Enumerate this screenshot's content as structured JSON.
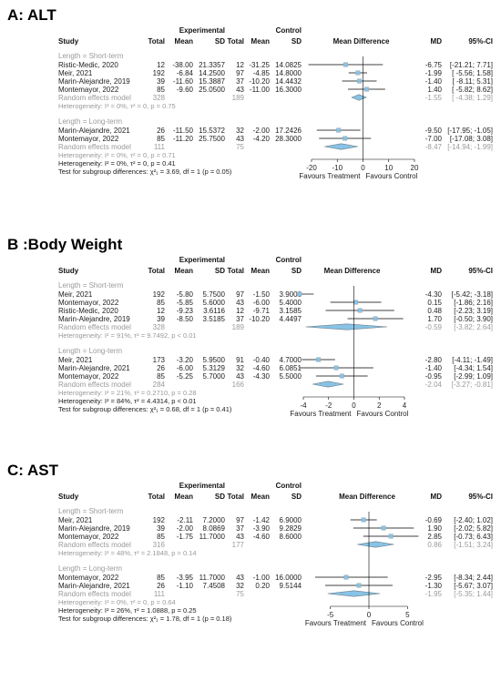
{
  "header": {
    "experimental": "Experimental",
    "control": "Control",
    "study": "Study",
    "total": "Total",
    "mean": "Mean",
    "sd": "SD",
    "mean_difference": "Mean Difference",
    "md": "MD",
    "ci": "95%-CI"
  },
  "colors": {
    "square": "#87c3e6",
    "square_edge": "#9aa7b0",
    "diamond": "#87c3e6",
    "line": "#000000",
    "gray_text": "#9a9a9a"
  },
  "chart_data": [
    {
      "type": "forest",
      "title": "A: ALT",
      "xlim": [
        -20,
        20
      ],
      "ticks": [
        -20,
        -10,
        0,
        10,
        20
      ],
      "favours_left": "Favours Treatment",
      "favours_right": "Favours Control",
      "groups": [
        {
          "label": "Length = Short-term",
          "studies": [
            {
              "study": "Ristic-Medic, 2020",
              "et": "12",
              "em": "-38.00",
              "esd": "21.3357",
              "ct": "12",
              "cm": "-31.25",
              "csd": "14.0825",
              "md": -6.75,
              "lo": -21.21,
              "hi": 7.71,
              "md_text": "-6.75",
              "ci_text": "[-21.21; 7.71]"
            },
            {
              "study": "Meir, 2021",
              "et": "192",
              "em": "-6.84",
              "esd": "14.2500",
              "ct": "97",
              "cm": "-4.85",
              "csd": "14.8000",
              "md": -1.99,
              "lo": -5.56,
              "hi": 1.58,
              "md_text": "-1.99",
              "ci_text": "[ -5.56; 1.58]"
            },
            {
              "study": "Marin-Alejandre, 2019",
              "et": "39",
              "em": "-11.60",
              "esd": "15.3887",
              "ct": "37",
              "cm": "-10.20",
              "csd": "14.4432",
              "md": -1.4,
              "lo": -8.11,
              "hi": 5.31,
              "md_text": "-1.40",
              "ci_text": "[ -8.11; 5.31]"
            },
            {
              "study": "Montemayor, 2022",
              "et": "85",
              "em": "-9.60",
              "esd": "25.0500",
              "ct": "43",
              "cm": "-11.00",
              "csd": "16.3000",
              "md": 1.4,
              "lo": -5.82,
              "hi": 8.62,
              "md_text": "1.40",
              "ci_text": "[ -5.82; 8.62]"
            }
          ],
          "re_label": "Random effects model",
          "re_et": "328",
          "re_ct": "189",
          "re_md": -1.55,
          "re_lo": -4.38,
          "re_hi": 1.29,
          "re_md_text": "-1.55",
          "re_ci_text": "[ -4.38; 1.29]",
          "het": "Heterogeneity: I² = 0%, τ² = 0, p = 0.75"
        },
        {
          "label": "Length = Long-term",
          "studies": [
            {
              "study": "Marin-Alejandre, 2021",
              "et": "26",
              "em": "-11.50",
              "esd": "15.5372",
              "ct": "32",
              "cm": "-2.00",
              "csd": "17.2426",
              "md": -9.5,
              "lo": -17.95,
              "hi": -1.05,
              "md_text": "-9.50",
              "ci_text": "[-17.95; -1.05]"
            },
            {
              "study": "Montemayor, 2022",
              "et": "85",
              "em": "-11.20",
              "esd": "25.7500",
              "ct": "43",
              "cm": "-4.20",
              "csd": "28.3000",
              "md": -7.0,
              "lo": -17.08,
              "hi": 3.08,
              "md_text": "-7.00",
              "ci_text": "[-17.08; 3.08]"
            }
          ],
          "re_label": "Random effects model",
          "re_et": "111",
          "re_ct": "75",
          "re_md": -8.47,
          "re_lo": -14.94,
          "re_hi": -1.99,
          "re_md_text": "-8.47",
          "re_ci_text": "[-14.94; -1.99]",
          "het": "Heterogeneity: I² = 0%, τ² = 0, p = 0.71"
        }
      ],
      "overall_het": "Heterogeneity: I² = 0%, τ² = 0, p = 0.41",
      "subgroup_test": "Test for subgroup differences: χ²₁ = 3.69, df = 1 (p = 0.05)"
    },
    {
      "type": "forest",
      "title": "B :Body Weight",
      "xlim": [
        -4,
        4
      ],
      "ticks": [
        -4,
        -2,
        0,
        2,
        4
      ],
      "favours_left": "Favours Treatment",
      "favours_right": "Favours Control",
      "groups": [
        {
          "label": "Length = Short-term",
          "studies": [
            {
              "study": "Meir, 2021",
              "et": "192",
              "em": "-5.80",
              "esd": "5.7500",
              "ct": "97",
              "cm": "-1.50",
              "csd": "3.9000",
              "md": -4.3,
              "lo": -5.42,
              "hi": -3.18,
              "md_text": "-4.30",
              "ci_text": "[-5.42; -3.18]"
            },
            {
              "study": "Montemayor, 2022",
              "et": "85",
              "em": "-5.85",
              "esd": "5.6000",
              "ct": "43",
              "cm": "-6.00",
              "csd": "5.4000",
              "md": 0.15,
              "lo": -1.86,
              "hi": 2.16,
              "md_text": "0.15",
              "ci_text": "[-1.86; 2.16]"
            },
            {
              "study": "Ristic-Medic, 2020",
              "et": "12",
              "em": "-9.23",
              "esd": "3.6116",
              "ct": "12",
              "cm": "-9.71",
              "csd": "3.1585",
              "md": 0.48,
              "lo": -2.23,
              "hi": 3.19,
              "md_text": "0.48",
              "ci_text": "[-2.23; 3.19]"
            },
            {
              "study": "Marin-Alejandre, 2019",
              "et": "39",
              "em": "-8.50",
              "esd": "3.5185",
              "ct": "37",
              "cm": "-10.20",
              "csd": "4.4497",
              "md": 1.7,
              "lo": -0.5,
              "hi": 3.9,
              "md_text": "1.70",
              "ci_text": "[-0.50; 3.90]"
            }
          ],
          "re_label": "Random effects model",
          "re_et": "328",
          "re_ct": "189",
          "re_md": -0.59,
          "re_lo": -3.82,
          "re_hi": 2.64,
          "re_md_text": "-0.59",
          "re_ci_text": "[-3.82; 2.64]",
          "het": "Heterogeneity: I² = 91%, τ² = 9.7492, p < 0.01"
        },
        {
          "label": "Length = Long-term",
          "studies": [
            {
              "study": "Meir, 2021",
              "et": "173",
              "em": "-3.20",
              "esd": "5.9500",
              "ct": "91",
              "cm": "-0.40",
              "csd": "4.7000",
              "md": -2.8,
              "lo": -4.11,
              "hi": -1.49,
              "md_text": "-2.80",
              "ci_text": "[-4.11; -1.49]"
            },
            {
              "study": "Marin-Alejandre, 2021",
              "et": "26",
              "em": "-6.00",
              "esd": "5.3129",
              "ct": "32",
              "cm": "-4.60",
              "csd": "6.0851",
              "md": -1.4,
              "lo": -4.34,
              "hi": 1.54,
              "md_text": "-1.40",
              "ci_text": "[-4.34; 1.54]"
            },
            {
              "study": "Montemayor, 2022",
              "et": "85",
              "em": "-5.25",
              "esd": "5.7000",
              "ct": "43",
              "cm": "-4.30",
              "csd": "5.5000",
              "md": -0.95,
              "lo": -2.99,
              "hi": 1.09,
              "md_text": "-0.95",
              "ci_text": "[-2.99; 1.09]"
            }
          ],
          "re_label": "Random effects model",
          "re_et": "284",
          "re_ct": "166",
          "re_md": -2.04,
          "re_lo": -3.27,
          "re_hi": -0.81,
          "re_md_text": "-2.04",
          "re_ci_text": "[-3.27; -0.81]",
          "het": "Heterogeneity: I² = 21%, τ² = 0.2710, p = 0.28"
        }
      ],
      "overall_het": "Heterogeneity: I² = 84%, τ² = 4.4314, p < 0.01",
      "subgroup_test": "Test for subgroup differences: χ²₁ = 0.68, df = 1 (p = 0.41)"
    },
    {
      "type": "forest",
      "title": "C: AST",
      "xlim": [
        -5,
        5
      ],
      "ticks": [
        -5,
        0,
        5
      ],
      "favours_left": "Favours Treatment",
      "favours_right": "Favours Control",
      "groups": [
        {
          "label": "Length = Short-term",
          "studies": [
            {
              "study": "Meir, 2021",
              "et": "192",
              "em": "-2.11",
              "esd": "7.2000",
              "ct": "97",
              "cm": "-1.42",
              "csd": "6.9000",
              "md": -0.69,
              "lo": -2.4,
              "hi": 1.02,
              "md_text": "-0.69",
              "ci_text": "[-2.40; 1.02]"
            },
            {
              "study": "Marin-Alejandre, 2019",
              "et": "39",
              "em": "-2.00",
              "esd": "8.0869",
              "ct": "37",
              "cm": "-3.90",
              "csd": "9.2829",
              "md": 1.9,
              "lo": -2.02,
              "hi": 5.82,
              "md_text": "1.90",
              "ci_text": "[-2.02; 5.82]"
            },
            {
              "study": "Montemayor, 2022",
              "et": "85",
              "em": "-1.75",
              "esd": "11.7000",
              "ct": "43",
              "cm": "-4.60",
              "csd": "8.6000",
              "md": 2.85,
              "lo": -0.73,
              "hi": 6.43,
              "md_text": "2.85",
              "ci_text": "[-0.73; 6.43]"
            }
          ],
          "re_label": "Random effects model",
          "re_et": "316",
          "re_ct": "177",
          "re_md": 0.86,
          "re_lo": -1.51,
          "re_hi": 3.24,
          "re_md_text": "0.86",
          "re_ci_text": "[-1.51; 3.24]",
          "het": "Heterogeneity: I² = 48%, τ² = 2.1848, p = 0.14"
        },
        {
          "label": "Length = Long-term",
          "studies": [
            {
              "study": "Montemayor, 2022",
              "et": "85",
              "em": "-3.95",
              "esd": "11.7000",
              "ct": "43",
              "cm": "-1.00",
              "csd": "16.0000",
              "md": -2.95,
              "lo": -8.34,
              "hi": 2.44,
              "md_text": "-2.95",
              "ci_text": "[-8.34; 2.44]"
            },
            {
              "study": "Marin-Alejandre, 2021",
              "et": "26",
              "em": "-1.10",
              "esd": "7.4508",
              "ct": "32",
              "cm": "0.20",
              "csd": "9.5144",
              "md": -1.3,
              "lo": -5.67,
              "hi": 3.07,
              "md_text": "-1.30",
              "ci_text": "[-5.67; 3.07]"
            }
          ],
          "re_label": "Random effects model",
          "re_et": "111",
          "re_ct": "75",
          "re_md": -1.95,
          "re_lo": -5.35,
          "re_hi": 1.44,
          "re_md_text": "-1.95",
          "re_ci_text": "[-5.35; 1.44]",
          "het": "Heterogeneity: I² = 0%, τ² = 0, p = 0.64"
        }
      ],
      "overall_het": "Heterogeneity: I² = 26%, τ² = 1.0888, p = 0.25",
      "subgroup_test": "Test for subgroup differences: χ²₁ = 1.78, df = 1 (p = 0.18)"
    }
  ]
}
